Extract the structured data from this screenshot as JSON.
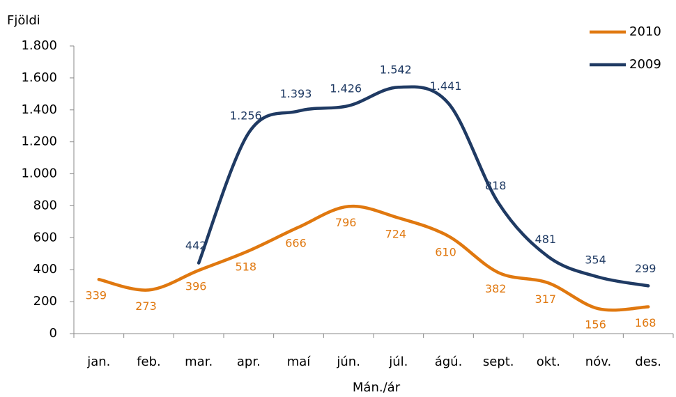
{
  "chart_data": {
    "type": "line",
    "y_label": "Fjöldi",
    "x_label": "Mán./ár",
    "categories": [
      "jan.",
      "feb.",
      "mar.",
      "apr.",
      "maí",
      "jún.",
      "júl.",
      "ágú.",
      "sept.",
      "okt.",
      "nóv.",
      "des."
    ],
    "series": [
      {
        "name": "2010",
        "color": "#e0780f",
        "values": [
          339,
          273,
          396,
          518,
          666,
          796,
          724,
          610,
          382,
          317,
          156,
          168
        ],
        "label_side": "below"
      },
      {
        "name": "2009",
        "color": "#1f3a63",
        "values": [
          null,
          null,
          442,
          1256,
          1393,
          1426,
          1542,
          1441,
          818,
          481,
          354,
          299
        ],
        "value_labels": [
          null,
          null,
          "442",
          "1.256",
          "1.393",
          "1.426",
          "1.542",
          "1.441",
          "818",
          "481",
          "354",
          "299"
        ],
        "label_side": "above"
      }
    ],
    "ylim": [
      0,
      1800
    ],
    "yticks": [
      0,
      200,
      400,
      600,
      800,
      {
        "value": 1000,
        "label": "1.000"
      },
      {
        "value": 1200,
        "label": "1.200"
      },
      {
        "value": 1400,
        "label": "1.400"
      },
      {
        "value": 1600,
        "label": "1.600"
      },
      {
        "value": 1800,
        "label": "1.800"
      }
    ],
    "smooth": true,
    "legend": "top-right"
  }
}
